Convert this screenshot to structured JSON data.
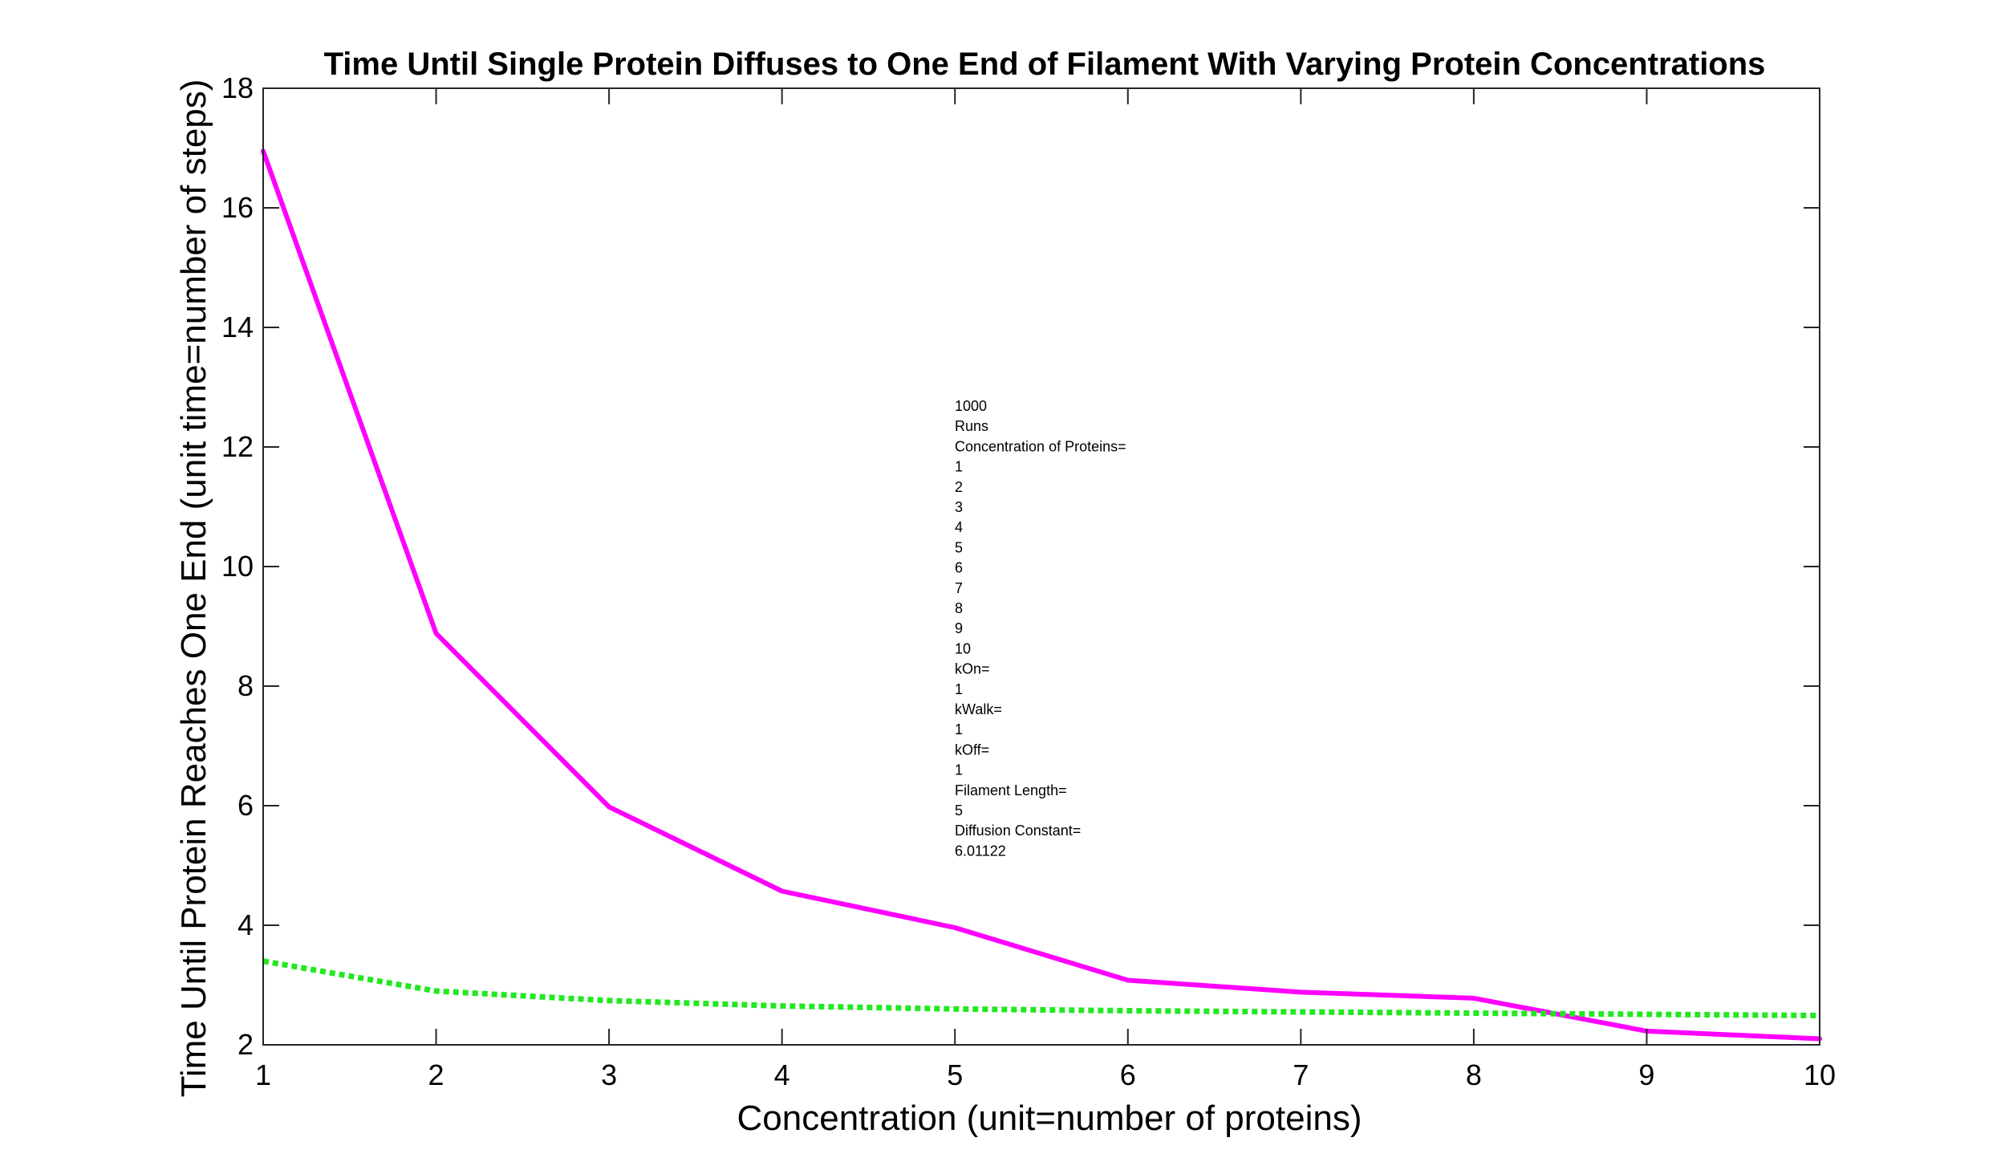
{
  "chart_data": {
    "type": "line",
    "title": "Time Until Single Protein Diffuses to One End of Filament With Varying Protein Concentrations",
    "xlabel": "Concentration (unit=number of proteins)",
    "ylabel": "Time Until Protein Reaches One End (unit time=number of steps)",
    "xlim": [
      1,
      10
    ],
    "ylim": [
      2,
      18
    ],
    "xticks": [
      1,
      2,
      3,
      4,
      5,
      6,
      7,
      8,
      9,
      10
    ],
    "yticks": [
      2,
      4,
      6,
      8,
      10,
      12,
      14,
      16,
      18
    ],
    "grid": false,
    "x": [
      1,
      2,
      3,
      4,
      5,
      6,
      7,
      8,
      9,
      10
    ],
    "series": [
      {
        "values": [
          16.95,
          8.88,
          5.98,
          4.57,
          3.96,
          3.08,
          2.88,
          2.78,
          2.23,
          2.1
        ],
        "color": "#ff00ff",
        "style": "solid"
      },
      {
        "values": [
          3.4,
          2.9,
          2.74,
          2.65,
          2.6,
          2.57,
          2.55,
          2.53,
          2.51,
          2.49
        ],
        "color": "#22e822",
        "style": "dotted"
      }
    ],
    "annotation": [
      "1000",
      "Runs",
      "Concentration of Proteins=",
      "1",
      "2",
      "3",
      "4",
      "5",
      "6",
      "7",
      "8",
      "9",
      "10",
      "kOn=",
      "1",
      "kWalk=",
      "1",
      "kOff=",
      "1",
      "Filament Length=",
      "5",
      "Diffusion Constant=",
      "6.01122"
    ]
  }
}
